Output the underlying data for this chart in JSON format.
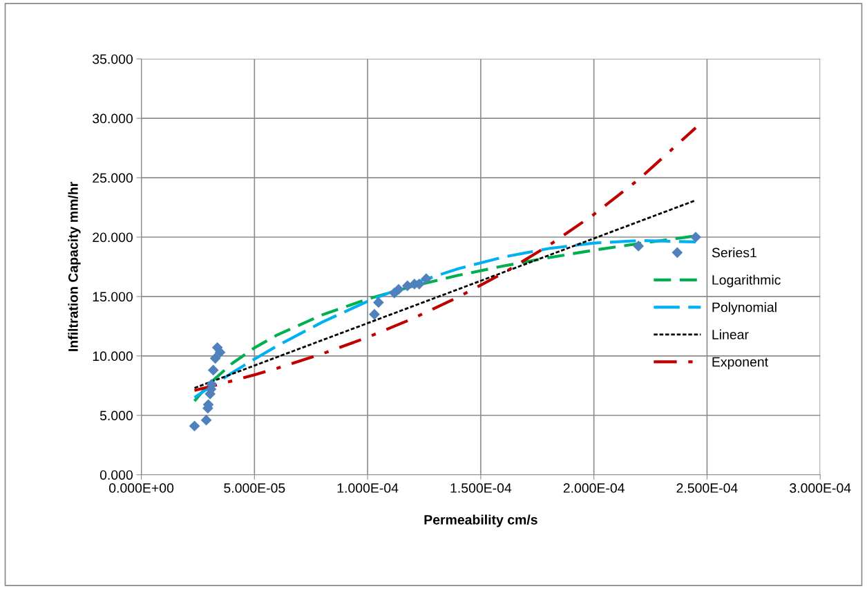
{
  "chart_data": {
    "type": "scatter",
    "xlabel": "Permeability cm/s",
    "ylabel": "Infiltration Capacity mm/hr",
    "xlim": [
      0,
      0.0003
    ],
    "ylim": [
      0,
      35
    ],
    "xticks": [
      {
        "value": 0,
        "label": "0.000E+00"
      },
      {
        "value": 5e-05,
        "label": "5.000E-05"
      },
      {
        "value": 0.0001,
        "label": "1.000E-04"
      },
      {
        "value": 0.00015,
        "label": "1.500E-04"
      },
      {
        "value": 0.0002,
        "label": "2.000E-04"
      },
      {
        "value": 0.00025,
        "label": "2.500E-04"
      },
      {
        "value": 0.0003,
        "label": "3.000E-04"
      }
    ],
    "yticks": [
      {
        "value": 0,
        "label": "0.000"
      },
      {
        "value": 5,
        "label": "5.000"
      },
      {
        "value": 10,
        "label": "10.000"
      },
      {
        "value": 15,
        "label": "15.000"
      },
      {
        "value": 20,
        "label": "20.000"
      },
      {
        "value": 25,
        "label": "25.000"
      },
      {
        "value": 30,
        "label": "30.000"
      },
      {
        "value": 35,
        "label": "35.000"
      }
    ],
    "grid": true,
    "legend": "center right",
    "series": [
      {
        "name": "Series1",
        "marker": "diamond",
        "color": "#4f81bd",
        "x": [
          2.35e-05,
          2.87e-05,
          2.96e-05,
          2.94e-05,
          3.04e-05,
          3.08e-05,
          3.1e-05,
          3.18e-05,
          3.27e-05,
          3.36e-05,
          3.48e-05,
          0.000103,
          0.0001048,
          0.0001118,
          0.0001137,
          0.0001176,
          0.0001207,
          0.0001228,
          0.0001259,
          0.0002197,
          0.000245
        ],
        "values": [
          4.1,
          4.6,
          5.9,
          5.6,
          6.8,
          7.2,
          7.6,
          8.8,
          9.8,
          10.7,
          10.3,
          13.5,
          14.5,
          15.3,
          15.6,
          15.9,
          16.05,
          16.05,
          16.5,
          19.25,
          20.0
        ]
      },
      {
        "name": "Logarithmic",
        "type": "line",
        "line_style": "dashed",
        "color": "#00b050",
        "x": [
          2.35e-05,
          3e-05,
          4e-05,
          5e-05,
          6e-05,
          8e-05,
          0.0001,
          0.00012,
          0.00014,
          0.00016,
          0.00018,
          0.0002,
          0.00022,
          0.000245
        ],
        "values": [
          6.2,
          7.65,
          9.35,
          10.68,
          11.76,
          13.46,
          14.79,
          15.87,
          16.78,
          17.57,
          18.27,
          18.9,
          19.46,
          20.1
        ]
      },
      {
        "name": "Polynomial",
        "type": "line",
        "line_style": "dashed",
        "color": "#00b0f0",
        "x": [
          2.35e-05,
          3e-05,
          4e-05,
          5e-05,
          6e-05,
          8e-05,
          0.0001,
          0.00012,
          0.00014,
          0.00016,
          0.00018,
          0.0002,
          0.00022,
          0.000245
        ],
        "values": [
          6.5,
          7.34,
          8.57,
          9.73,
          10.84,
          12.85,
          14.6,
          16.1,
          17.34,
          18.32,
          19.04,
          19.5,
          19.71,
          19.6
        ]
      },
      {
        "name": "Linear",
        "type": "line",
        "line_style": "dotted",
        "color": "#000000",
        "x": [
          2.35e-05,
          0.000245
        ],
        "values": [
          7.3,
          23.1
        ]
      },
      {
        "name": "Exponent",
        "type": "line",
        "line_style": "dashdot",
        "color": "#c00000",
        "x": [
          2.35e-05,
          3e-05,
          4e-05,
          5e-05,
          6e-05,
          8e-05,
          0.0001,
          0.00012,
          0.00014,
          0.00016,
          0.00018,
          0.0002,
          0.00022,
          0.000245
        ],
        "values": [
          7.1,
          7.4,
          7.89,
          8.41,
          8.96,
          10.18,
          11.57,
          13.15,
          14.95,
          16.97,
          19.29,
          21.91,
          24.89,
          29.2
        ]
      }
    ]
  }
}
